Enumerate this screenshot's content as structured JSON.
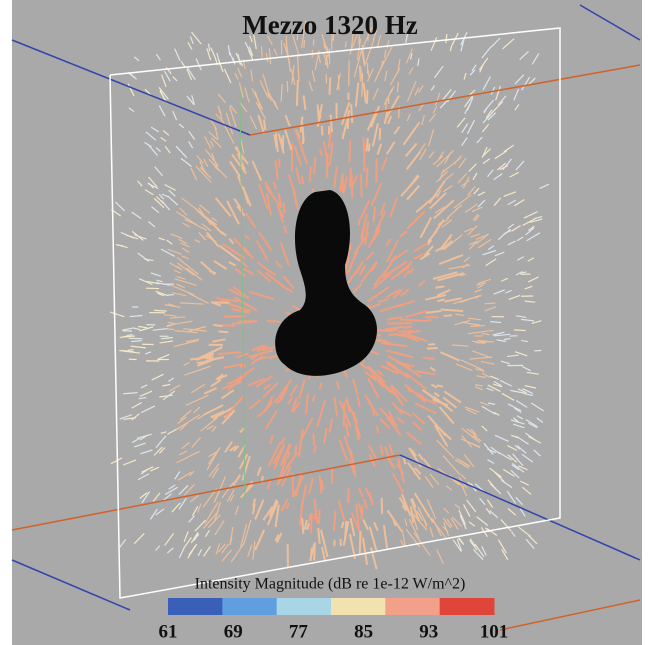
{
  "title": "Mezzo 1320 Hz",
  "colorbar": {
    "label": "Intensity Magnitude (dB re 1e-12 W/m^2)",
    "ticks": [
      61,
      69,
      77,
      85,
      93,
      101
    ],
    "colors": [
      "#3a5fb8",
      "#5f9fe0",
      "#a9d6e6",
      "#f3e2b0",
      "#f2a08a",
      "#e0453a"
    ]
  }
}
